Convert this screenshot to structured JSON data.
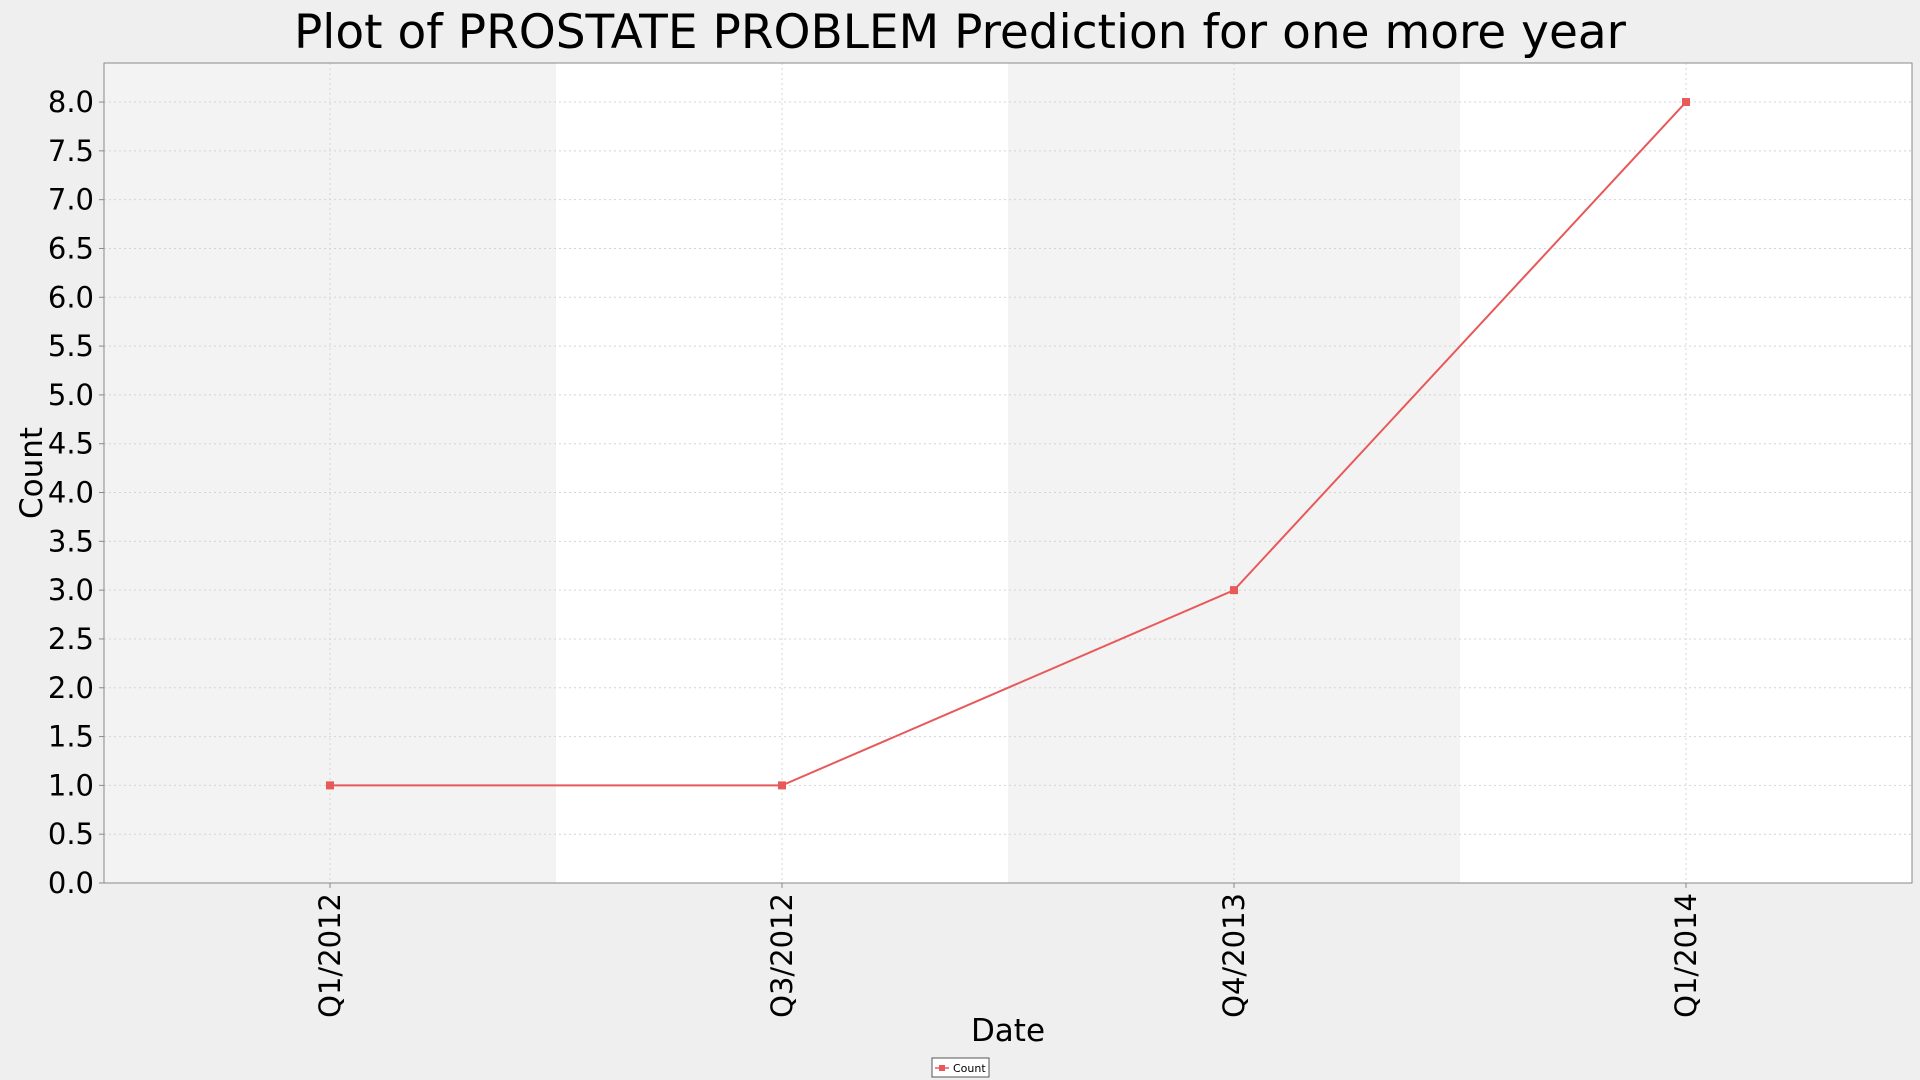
{
  "chart_data": {
    "type": "line",
    "title": "Plot of PROSTATE PROBLEM Prediction for one more year",
    "xlabel": "Date",
    "ylabel": "Count",
    "categories": [
      "Q1/2012",
      "Q3/2012",
      "Q4/2013",
      "Q1/2014"
    ],
    "series": [
      {
        "name": "Count",
        "values": [
          1.0,
          1.0,
          3.0,
          8.0
        ],
        "color": "#e8595a"
      }
    ],
    "ylim": [
      0,
      8.4
    ],
    "yticks": [
      0.0,
      0.5,
      1.0,
      1.5,
      2.0,
      2.5,
      3.0,
      3.5,
      4.0,
      4.5,
      5.0,
      5.5,
      6.0,
      6.5,
      7.0,
      7.5,
      8.0
    ],
    "grid": true,
    "band_colors": [
      "#f3f3f3",
      "#ffffff"
    ],
    "legend_position": "bottom-center"
  }
}
